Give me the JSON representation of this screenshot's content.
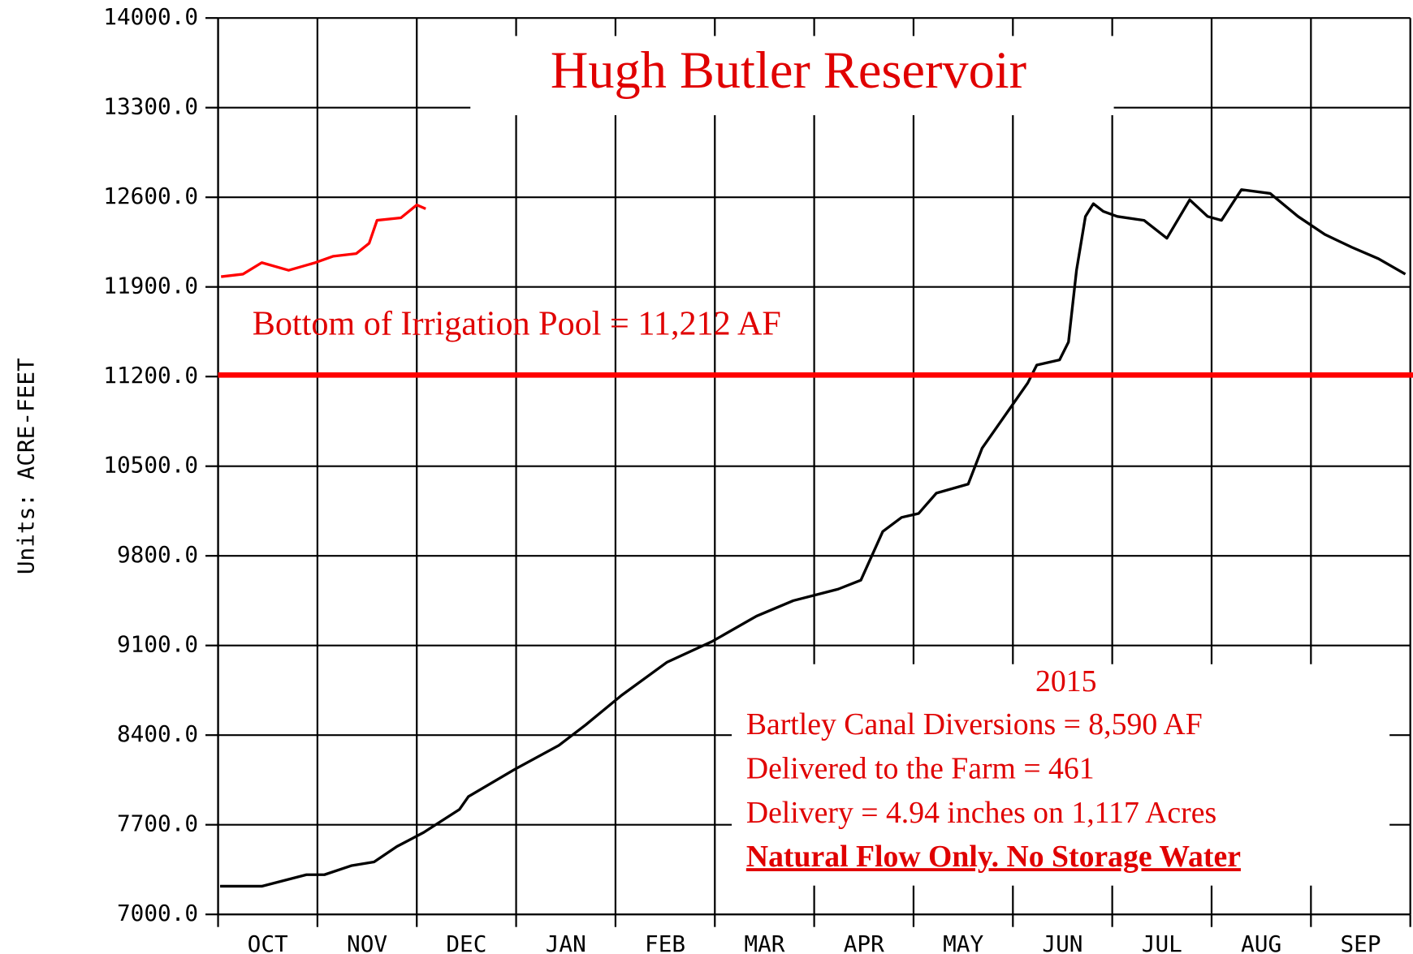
{
  "chart_data": {
    "type": "line",
    "title": "Hugh Butler Reservoir",
    "y_label": "Units: ACRE-FEET",
    "categories": [
      "OCT",
      "NOV",
      "DEC",
      "JAN",
      "FEB",
      "MAR",
      "APR",
      "MAY",
      "JUN",
      "JUL",
      "AUG",
      "SEP"
    ],
    "xlim": [
      0,
      12
    ],
    "xticks": [
      0,
      1,
      2,
      3,
      4,
      5,
      6,
      7,
      8,
      9,
      10,
      11,
      12
    ],
    "ylim": [
      7000,
      14000
    ],
    "yticks": [
      {
        "value": 7000,
        "label": "7000.0"
      },
      {
        "value": 7700,
        "label": "7700.0"
      },
      {
        "value": 8400,
        "label": "8400.0"
      },
      {
        "value": 9100,
        "label": "9100.0"
      },
      {
        "value": 9800,
        "label": "9800.0"
      },
      {
        "value": 10500,
        "label": "10500.0"
      },
      {
        "value": 11200,
        "label": "11200.0"
      },
      {
        "value": 11900,
        "label": "11900.0"
      },
      {
        "value": 12600,
        "label": "12600.0"
      },
      {
        "value": 13300,
        "label": "13300.0"
      },
      {
        "value": 14000,
        "label": "14000.0"
      }
    ],
    "grid": true,
    "series": [
      {
        "color": "#000000",
        "x": [
          0.02,
          0.44,
          0.89,
          1.07,
          1.34,
          1.57,
          1.8,
          2.07,
          2.43,
          2.52,
          2.98,
          3.43,
          3.7,
          4.06,
          4.52,
          4.97,
          5.42,
          5.79,
          6.24,
          6.47,
          6.69,
          6.88,
          7.05,
          7.23,
          7.55,
          7.69,
          7.96,
          8.15,
          8.24,
          8.47,
          8.56,
          8.64,
          8.73,
          8.81,
          8.91,
          9.05,
          9.32,
          9.55,
          9.78,
          9.96,
          10.1,
          10.3,
          10.59,
          10.87,
          11.14,
          11.41,
          11.68,
          11.95
        ],
        "values": [
          7220,
          7220,
          7310,
          7310,
          7380,
          7410,
          7530,
          7640,
          7820,
          7920,
          8130,
          8320,
          8480,
          8710,
          8970,
          9130,
          9330,
          9450,
          9540,
          9610,
          9990,
          10100,
          10130,
          10290,
          10360,
          10640,
          10940,
          11150,
          11290,
          11330,
          11470,
          12030,
          12450,
          12550,
          12490,
          12450,
          12420,
          12280,
          12580,
          12450,
          12420,
          12660,
          12630,
          12450,
          12310,
          12210,
          12120,
          12000
        ]
      },
      {
        "color": "#ff0000",
        "x": [
          0.03,
          0.25,
          0.44,
          0.71,
          0.98,
          1.16,
          1.39,
          1.52,
          1.6,
          1.84,
          2.0,
          2.09
        ],
        "values": [
          11980,
          12000,
          12090,
          12030,
          12090,
          12140,
          12160,
          12240,
          12420,
          12440,
          12540,
          12510
        ]
      }
    ],
    "hline": {
      "value": 11212,
      "color": "#ff0000",
      "label": "Bottom of Irrigation Pool = 11,212 AF"
    },
    "annotation": {
      "year": "2015",
      "lines": [
        "Bartley Canal Diversions = 8,590 AF",
        "Delivered to the Farm = 461",
        "Delivery = 4.94 inches on 1,117 Acres"
      ],
      "emphasis": "Natural Flow Only. No Storage Water"
    }
  }
}
